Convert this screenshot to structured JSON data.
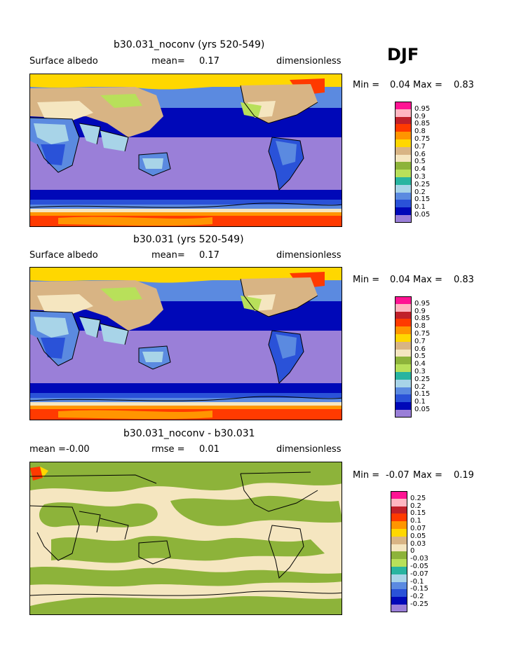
{
  "season": "DJF",
  "panels": [
    {
      "title": "b30.031_noconv (yrs 520-549)",
      "left_label": "Surface albedo",
      "mid_label": "mean=",
      "mid_value": "0.17",
      "right_label": "dimensionless",
      "min_label": "Min =",
      "min_value": "0.04",
      "max_label": "Max =",
      "max_value": "0.83",
      "legend": {
        "labels": [
          "0.95",
          "0.9",
          "0.85",
          "0.8",
          "0.75",
          "0.7",
          "0.6",
          "0.5",
          "0.4",
          "0.3",
          "0.25",
          "0.2",
          "0.15",
          "0.1",
          "0.05"
        ],
        "colors": [
          "#ff1493",
          "#ffb6c1",
          "#c0202a",
          "#ff3a00",
          "#ff9500",
          "#ffd700",
          "#d8b484",
          "#f5e6c0",
          "#8db33a",
          "#b8e05a",
          "#28b4a0",
          "#a8d4e8",
          "#5b8ae0",
          "#2a52d8",
          "#0008b8",
          "#9a7fd8"
        ]
      }
    },
    {
      "title": "b30.031 (yrs 520-549)",
      "left_label": "Surface albedo",
      "mid_label": "mean=",
      "mid_value": "0.17",
      "right_label": "dimensionless",
      "min_label": "Min =",
      "min_value": "0.04",
      "max_label": "Max =",
      "max_value": "0.83",
      "legend": {
        "labels": [
          "0.95",
          "0.9",
          "0.85",
          "0.8",
          "0.75",
          "0.7",
          "0.6",
          "0.5",
          "0.4",
          "0.3",
          "0.25",
          "0.2",
          "0.15",
          "0.1",
          "0.05"
        ],
        "colors": [
          "#ff1493",
          "#ffb6c1",
          "#c0202a",
          "#ff3a00",
          "#ff9500",
          "#ffd700",
          "#d8b484",
          "#f5e6c0",
          "#8db33a",
          "#b8e05a",
          "#28b4a0",
          "#a8d4e8",
          "#5b8ae0",
          "#2a52d8",
          "#0008b8",
          "#9a7fd8"
        ]
      }
    },
    {
      "title": "b30.031_noconv - b30.031",
      "left_label": "mean =",
      "left_value": "-0.00",
      "mid_label": "rmse =",
      "mid_value": "0.01",
      "right_label": "dimensionless",
      "min_label": "Min =",
      "min_value": "-0.07",
      "max_label": "Max =",
      "max_value": "0.19",
      "legend": {
        "labels": [
          "0.25",
          "0.2",
          "0.15",
          "0.1",
          "0.07",
          "0.05",
          "0.03",
          "0",
          "-0.03",
          "-0.05",
          "-0.07",
          "-0.1",
          "-0.15",
          "-0.2",
          "-0.25"
        ],
        "colors": [
          "#ff1493",
          "#ffb6c1",
          "#c0202a",
          "#ff3a00",
          "#ff9500",
          "#ffd700",
          "#d8b484",
          "#f5e6c0",
          "#8db33a",
          "#b8e05a",
          "#28b4a0",
          "#a8d4e8",
          "#5b8ae0",
          "#2a52d8",
          "#0008b8",
          "#9a7fd8"
        ]
      }
    }
  ]
}
